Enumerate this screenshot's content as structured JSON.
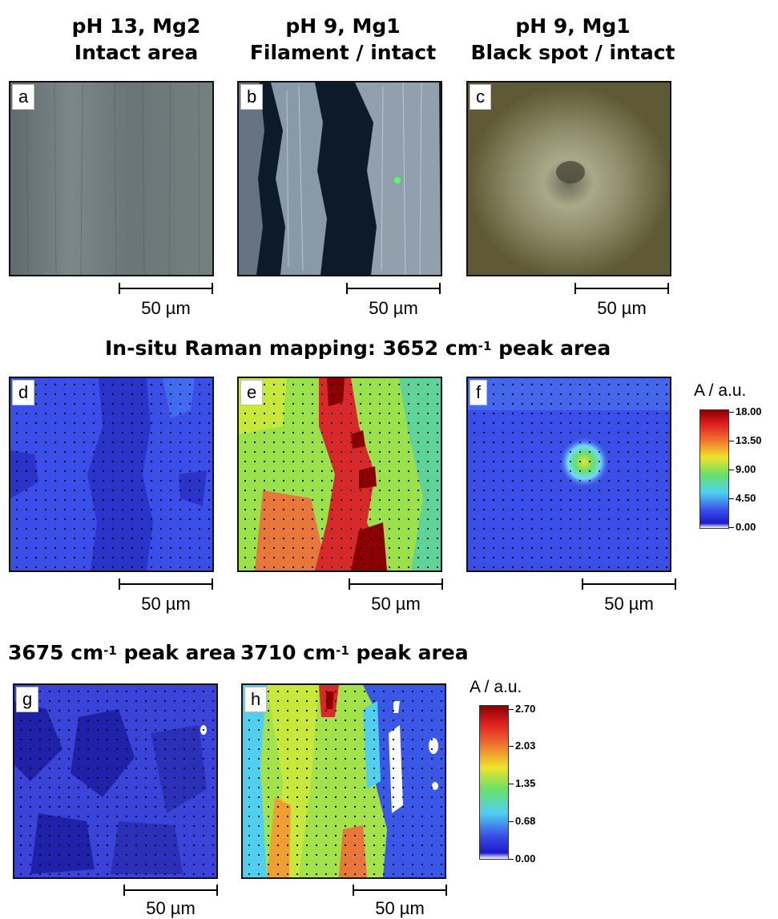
{
  "columns": [
    {
      "line1": "pH 13, Mg2",
      "line2": "Intact area"
    },
    {
      "line1": "pH 9, Mg1",
      "line2": "Filament / intact"
    },
    {
      "line1": "pH 9, Mg1",
      "line2": "Black spot / intact"
    }
  ],
  "row2_title": {
    "prefix": "In-situ Raman mapping: 3652 cm",
    "sup": "-1",
    "suffix": " peak area"
  },
  "row3_titles": [
    {
      "prefix": "3675 cm",
      "sup": "-1",
      "suffix": " peak area"
    },
    {
      "prefix": "3710 cm",
      "sup": "-1",
      "suffix": " peak area"
    }
  ],
  "panels": {
    "a": "a",
    "b": "b",
    "c": "c",
    "d": "d",
    "e": "e",
    "f": "f",
    "g": "g",
    "h": "h"
  },
  "scalebar_label": "50 µm",
  "colorbar1": {
    "title": "A / a.u.",
    "ticks": [
      "18.00",
      "13.50",
      "9.00",
      "4.50",
      "0.00"
    ]
  },
  "colorbar2": {
    "title": "A / a.u.",
    "ticks": [
      "2.70",
      "2.03",
      "1.35",
      "0.68",
      "0.00"
    ]
  },
  "colors": {
    "map_low": "#2a3ee0",
    "map_high": "#8b0000",
    "micrograph_gray": "#6f7b7d",
    "micrograph_dark": "#0c1a2a",
    "micrograph_olive": "#6e6a45"
  }
}
